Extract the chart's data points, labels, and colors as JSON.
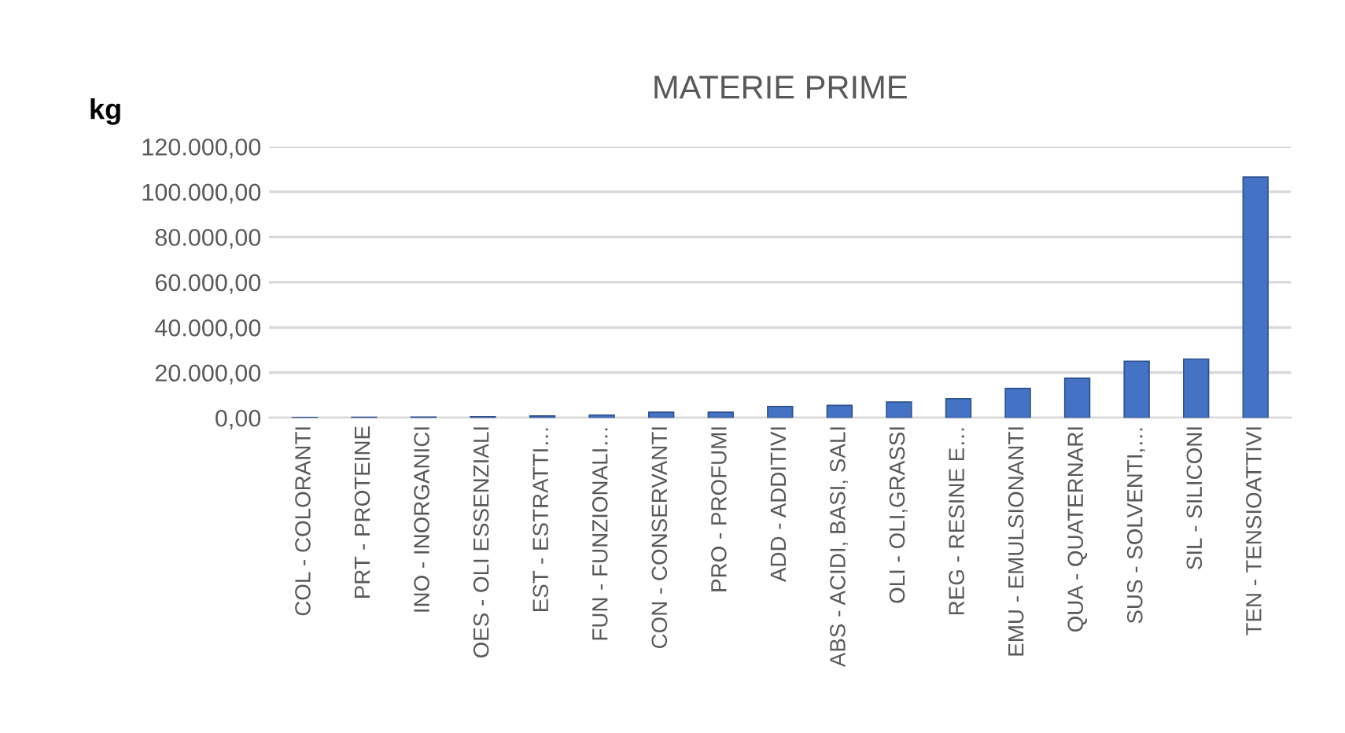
{
  "chart_data": {
    "type": "bar",
    "title": "MATERIE PRIME",
    "ylabel": "kg",
    "categories": [
      "COL - COLORANTI",
      "PRT - PROTEINE",
      "INO - INORGANICI",
      "OES - OLI ESSENZIALI",
      "EST - ESTRATTI…",
      "FUN - FUNZIONALI…",
      "CON - CONSERVANTI",
      "PRO - PROFUMI",
      "ADD - ADDITIVI",
      "ABS - ACIDI, BASI, SALI",
      "OLI - OLI,GRASSI",
      "REG - RESINE E…",
      "EMU - EMULSIONANTI",
      "QUA - QUATERNARI",
      "SUS - SOLVENTI,…",
      "SIL - SILICONI",
      "TEN - TENSIOATTIVI"
    ],
    "values": [
      100,
      200,
      300,
      500,
      800,
      1200,
      2500,
      2500,
      5000,
      5500,
      7000,
      8500,
      13000,
      17500,
      25000,
      26000,
      106500
    ],
    "color": "#4472c4",
    "ylim": [
      0,
      120000
    ],
    "yticks": [
      {
        "value": 0,
        "label": "0,00"
      },
      {
        "value": 20000,
        "label": "20.000,00"
      },
      {
        "value": 40000,
        "label": "40.000,00"
      },
      {
        "value": 60000,
        "label": "60.000,00"
      },
      {
        "value": 80000,
        "label": "80.000,00"
      },
      {
        "value": 100000,
        "label": "100.000,00"
      },
      {
        "value": 120000,
        "label": "120.000,00"
      }
    ],
    "grid": "y"
  }
}
